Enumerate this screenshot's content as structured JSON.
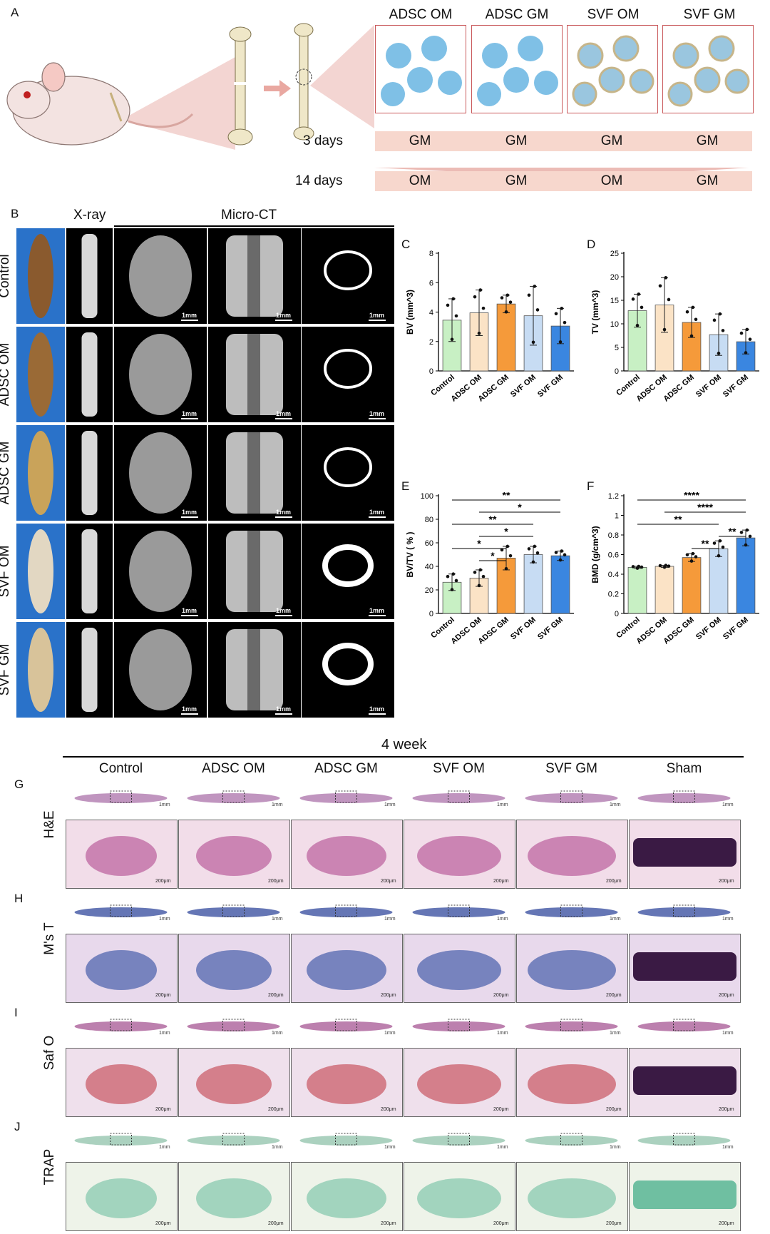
{
  "panel_labels": {
    "A": "A",
    "B": "B",
    "C": "C",
    "D": "D",
    "E": "E",
    "F": "F",
    "G": "G",
    "H": "H",
    "I": "I",
    "J": "J"
  },
  "schematic": {
    "groups": [
      "ADSC OM",
      "ADSC GM",
      "SVF OM",
      "SVF GM"
    ],
    "row1_label": "3 days",
    "row1_media": [
      "GM",
      "GM",
      "GM",
      "GM"
    ],
    "row2_label": "14 days",
    "row2_media": [
      "OM",
      "GM",
      "OM",
      "GM"
    ]
  },
  "panelB": {
    "xray_header": "X-ray",
    "microct_header": "Micro-CT",
    "rows": [
      "Control",
      "ADSC OM",
      "ADSC GM",
      "SVF OM",
      "SVF GM"
    ],
    "scale_label": "1mm"
  },
  "histology": {
    "timepoint": "4 week",
    "columns": [
      "Control",
      "ADSC OM",
      "ADSC GM",
      "SVF OM",
      "SVF GM",
      "Sham"
    ],
    "stains": [
      "H&E",
      "M's T",
      "Saf O",
      "TRAP"
    ],
    "scale_top": "1mm",
    "scale_bottom": "200μm"
  },
  "colors": {
    "control": "#c8f0c4",
    "adsc_om": "#fbe3c6",
    "adsc_gm": "#f59a3a",
    "svf_om": "#c7dcf3",
    "svf_gm": "#3a86e0"
  },
  "chart_data": [
    {
      "id": "C",
      "type": "bar",
      "categories": [
        "Control",
        "ADSC OM",
        "ADSC GM",
        "SVF OM",
        "SVF GM"
      ],
      "values": [
        3.45,
        3.95,
        4.55,
        3.75,
        3.05
      ],
      "errors": [
        1.45,
        1.55,
        0.6,
        2.0,
        1.2
      ],
      "ylabel": "BV (mm^3)",
      "ylim": [
        0,
        8
      ],
      "yticks": [
        0,
        2,
        4,
        6,
        8
      ],
      "significance": []
    },
    {
      "id": "D",
      "type": "bar",
      "categories": [
        "Control",
        "ADSC OM",
        "ADSC GM",
        "SVF OM",
        "SVF GM"
      ],
      "values": [
        12.8,
        14.0,
        10.3,
        7.7,
        6.2
      ],
      "errors": [
        3.5,
        5.8,
        3.2,
        4.4,
        2.6
      ],
      "ylabel": "TV (mm^3)",
      "ylim": [
        0,
        25
      ],
      "yticks": [
        0,
        5,
        10,
        15,
        20,
        25
      ],
      "significance": []
    },
    {
      "id": "E",
      "type": "bar",
      "categories": [
        "Control",
        "ADSC OM",
        "ADSC GM",
        "SVF OM",
        "SVF GM"
      ],
      "values": [
        26.5,
        30.0,
        47.0,
        50.0,
        49.0
      ],
      "errors": [
        7,
        7,
        10,
        7,
        4
      ],
      "ylabel": "BV/TV ( % )",
      "ylim": [
        0,
        100
      ],
      "yticks": [
        0,
        20,
        40,
        60,
        80,
        100
      ],
      "significance": [
        {
          "from": 0,
          "to": 4,
          "label": "**"
        },
        {
          "from": 1,
          "to": 4,
          "label": "*"
        },
        {
          "from": 0,
          "to": 3,
          "label": "**"
        },
        {
          "from": 1,
          "to": 3,
          "label": "*"
        },
        {
          "from": 0,
          "to": 2,
          "label": "*"
        },
        {
          "from": 1,
          "to": 2,
          "label": "*"
        }
      ]
    },
    {
      "id": "F",
      "type": "bar",
      "categories": [
        "Control",
        "ADSC OM",
        "ADSC GM",
        "SVF OM",
        "SVF GM"
      ],
      "values": [
        0.47,
        0.48,
        0.57,
        0.66,
        0.77
      ],
      "errors": [
        0.01,
        0.01,
        0.04,
        0.08,
        0.08
      ],
      "ylabel": "BMD (g/cm^3)",
      "ylim": [
        0,
        1.2
      ],
      "yticks": [
        0.0,
        0.2,
        0.4,
        0.6,
        0.8,
        1.0,
        1.2
      ],
      "significance": [
        {
          "from": 0,
          "to": 4,
          "label": "****"
        },
        {
          "from": 1,
          "to": 4,
          "label": "****"
        },
        {
          "from": 0,
          "to": 3,
          "label": "**"
        },
        {
          "from": 3,
          "to": 4,
          "label": "**"
        },
        {
          "from": 2,
          "to": 3,
          "label": "**"
        }
      ]
    }
  ]
}
